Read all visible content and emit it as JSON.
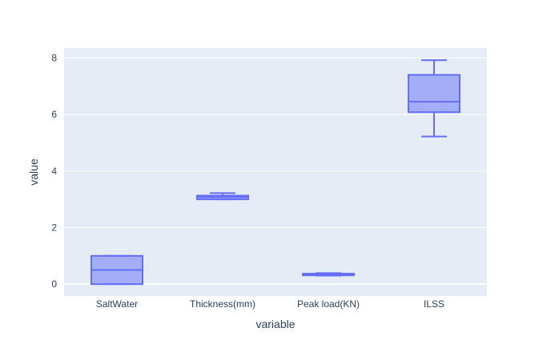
{
  "chart_data": {
    "type": "box",
    "title": "",
    "xlabel": "variable",
    "ylabel": "value",
    "categories": [
      "SaltWater",
      "Thickness(mm)",
      "Peak load(KN)",
      "ILSS"
    ],
    "ylim": [
      -0.42,
      8.35
    ],
    "yticks": [
      0,
      2,
      4,
      6,
      8
    ],
    "grid": true,
    "boxes": [
      {
        "category": "SaltWater",
        "min": 0,
        "q1": 0,
        "median": 0.5,
        "q3": 1,
        "max": 1
      },
      {
        "category": "Thickness(mm)",
        "min": 3.0,
        "q1": 3.0,
        "median": 3.08,
        "q3": 3.13,
        "max": 3.22
      },
      {
        "category": "Peak load(KN)",
        "min": 0.3,
        "q1": 0.31,
        "median": 0.34,
        "q3": 0.37,
        "max": 0.39
      },
      {
        "category": "ILSS",
        "min": 5.22,
        "q1": 6.08,
        "median": 6.45,
        "q3": 7.4,
        "max": 7.92
      }
    ]
  },
  "colors": {
    "plot_bg": "#e5ecf6",
    "grid": "#ffffff",
    "box_line": "#636efa",
    "box_fill": "rgba(99,110,250,0.5)",
    "text": "#2a3f5f"
  }
}
